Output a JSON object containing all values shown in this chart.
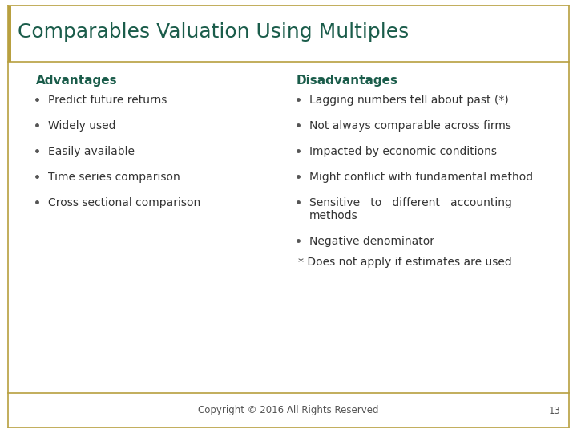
{
  "title": "Comparables Valuation Using Multiples",
  "title_color": "#1a5c4a",
  "title_fontsize": 18,
  "background_color": "#ffffff",
  "border_color": "#b8a040",
  "adv_header": "Advantages",
  "dis_header": "Disadvantages",
  "header_color": "#1a5c4a",
  "header_fontsize": 11,
  "advantages": [
    "Predict future returns",
    "Widely used",
    "Easily available",
    "Time series comparison",
    "Cross sectional comparison"
  ],
  "disadvantages_line1": [
    "Lagging numbers tell about past (*)",
    "Not always comparable across firms",
    "Impacted by economic conditions",
    "Might conflict with fundamental method",
    "Sensitive   to   different   accounting"
  ],
  "dis_item5_line2": "methods",
  "dis_item6": "Negative denominator",
  "footnote": "* Does not apply if estimates are used",
  "copyright": "Copyright © 2016 All Rights Reserved",
  "page_number": "13",
  "bullet_color": "#555555",
  "text_color": "#333333",
  "text_fontsize": 10,
  "left_bar_color": "#b8a040"
}
